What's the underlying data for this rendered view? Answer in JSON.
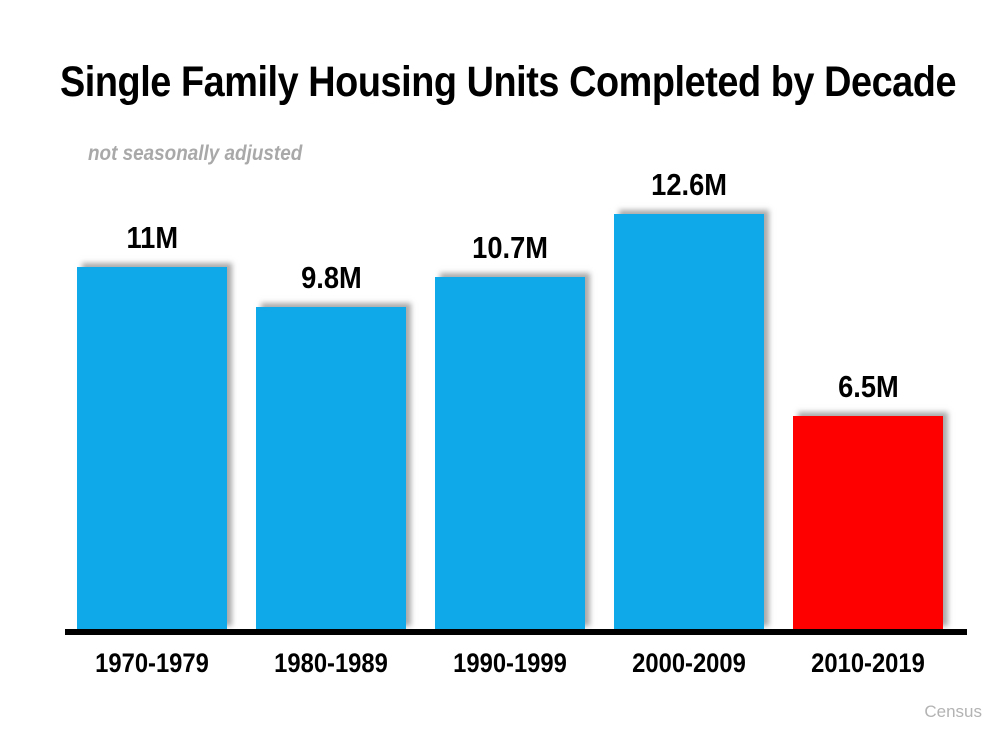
{
  "title": "Single Family Housing Units Completed by Decade",
  "subtitle": "not seasonally adjusted",
  "source": "Census",
  "colors": {
    "bar_blue": "#0fa9ea",
    "bar_red": "#ff0000",
    "axis_black": "#000000",
    "subtitle_gray": "#a9a9a9",
    "source_gray": "#b3b3b3"
  },
  "chart_data": {
    "type": "bar",
    "title": "Single Family Housing Units Completed by Decade",
    "subtitle": "not seasonally adjusted",
    "categories": [
      "1970-1979",
      "1980-1989",
      "1990-1999",
      "2000-2009",
      "2010-2019"
    ],
    "values": [
      11,
      9.8,
      10.7,
      12.6,
      6.5
    ],
    "value_labels": [
      "11M",
      "9.8M",
      "10.7M",
      "12.6M",
      "6.5M"
    ],
    "unit": "millions of housing units",
    "bar_colors": [
      "#0fa9ea",
      "#0fa9ea",
      "#0fa9ea",
      "#0fa9ea",
      "#ff0000"
    ],
    "xlabel": "",
    "ylabel": "",
    "ylim": [
      0,
      13
    ],
    "grid": false,
    "y_axis_shown": false,
    "legend": "none",
    "annotations": [
      "Census"
    ]
  }
}
